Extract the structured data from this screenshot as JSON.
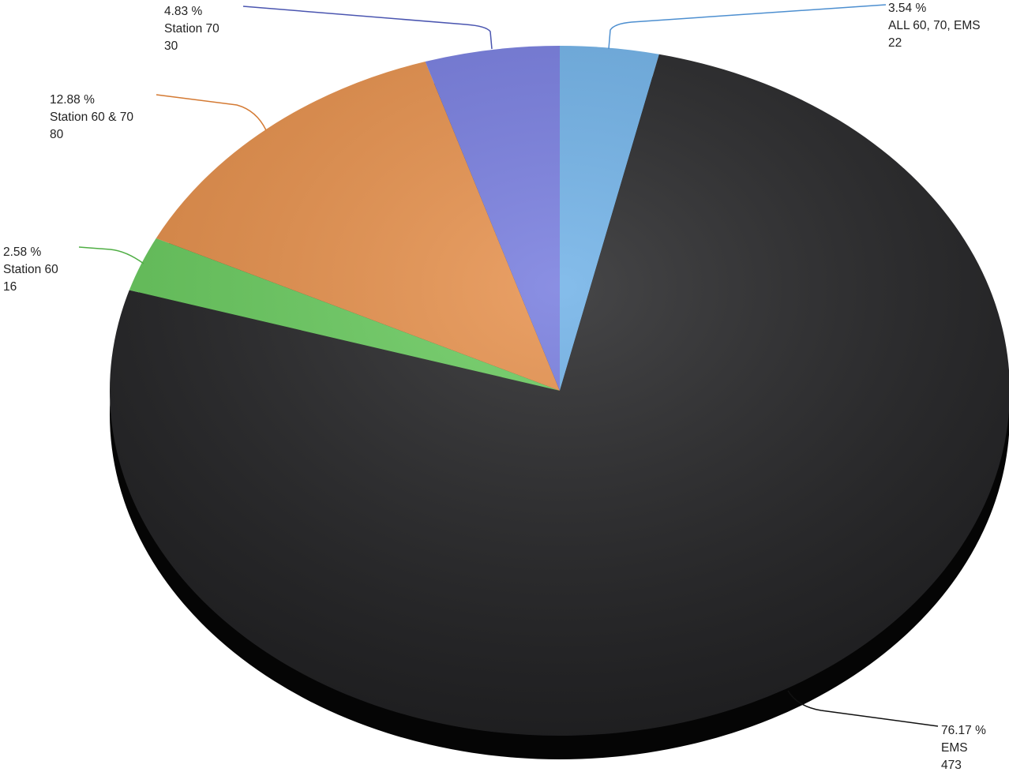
{
  "chart_data": {
    "type": "pie",
    "title": "",
    "slices": [
      {
        "label": "ALL 60, 70, EMS",
        "value": 22,
        "percent_label": "3.54 %",
        "color": "#6aaee6"
      },
      {
        "label": "EMS",
        "value": 473,
        "percent_label": "76.17 %",
        "color": "#1e1e20"
      },
      {
        "label": "Station 60",
        "value": 16,
        "percent_label": "2.58 %",
        "color": "#64c959"
      },
      {
        "label": "Station 60 & 70",
        "value": 80,
        "percent_label": "12.88 %",
        "color": "#e58c45"
      },
      {
        "label": "Station 70",
        "value": 30,
        "percent_label": "4.83 %",
        "color": "#7177dd"
      }
    ],
    "legend": "none",
    "style": "3d-tilted"
  }
}
